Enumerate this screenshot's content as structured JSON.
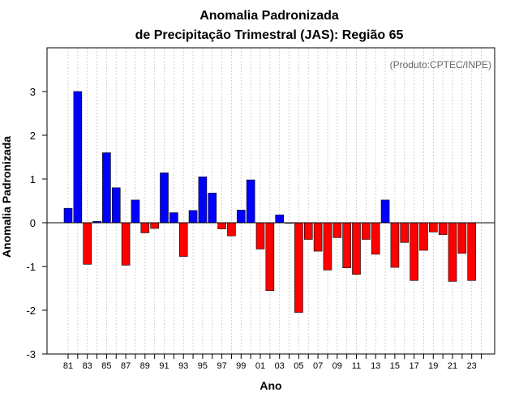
{
  "chart_data": {
    "type": "bar",
    "title": [
      "Anomalia Padronizada",
      "de Precipitação Trimestral (JAS): Região 65"
    ],
    "credit": "(Produto:CPTEC/INPE)",
    "xlabel": "Ano",
    "ylabel": "Anomalia Padronizada",
    "ylim": [
      -3,
      4
    ],
    "yticks": [
      "-3",
      "-2",
      "-1",
      "0",
      "1",
      "2",
      "3"
    ],
    "grid": "vertical dotted",
    "categories": [
      "81",
      "82",
      "83",
      "84",
      "85",
      "86",
      "87",
      "88",
      "89",
      "90",
      "91",
      "92",
      "93",
      "94",
      "95",
      "96",
      "97",
      "98",
      "99",
      "00",
      "01",
      "02",
      "03",
      "04",
      "05",
      "06",
      "07",
      "08",
      "09",
      "10",
      "11",
      "12",
      "13",
      "14",
      "15",
      "16",
      "17",
      "18",
      "19",
      "20",
      "21",
      "22",
      "23",
      "24"
    ],
    "xtick_labels": [
      "81",
      "83",
      "85",
      "87",
      "89",
      "91",
      "93",
      "95",
      "97",
      "99",
      "01",
      "03",
      "05",
      "07",
      "09",
      "11",
      "13",
      "15",
      "17",
      "19",
      "21",
      "23"
    ],
    "values": [
      0.33,
      3.0,
      -0.95,
      0.03,
      1.6,
      0.8,
      -0.97,
      0.52,
      -0.23,
      -0.13,
      1.14,
      0.23,
      -0.77,
      0.28,
      1.05,
      0.68,
      -0.14,
      -0.3,
      0.29,
      0.98,
      -0.6,
      -1.55,
      0.18,
      0.0,
      -2.05,
      -0.38,
      -0.65,
      -1.08,
      -0.34,
      -1.03,
      -1.18,
      -0.38,
      -0.72,
      0.52,
      -1.02,
      -0.45,
      -1.32,
      -0.63,
      -0.21,
      -0.27,
      -1.34,
      -0.7,
      -1.32,
      null
    ],
    "colors": {
      "positive": "#0000ff",
      "negative": "#ff0000",
      "grid": "#c8c8c8",
      "credit": "#666666"
    }
  }
}
